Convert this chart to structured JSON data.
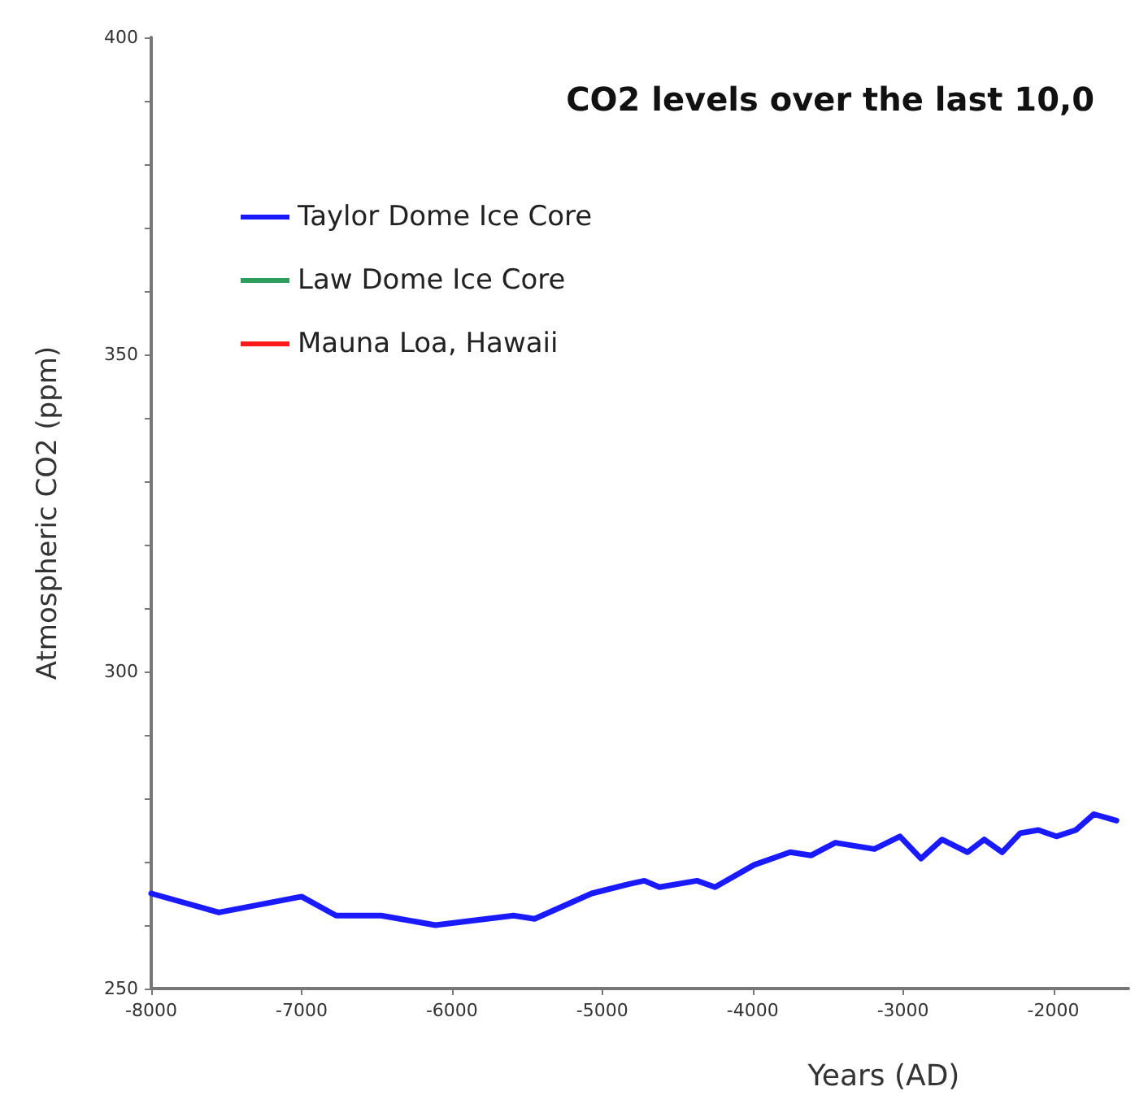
{
  "chart_data": {
    "type": "line",
    "title": "CO2 levels over the last 10,0",
    "xlabel": "Years (AD)",
    "ylabel": "Atmospheric CO2 (ppm)",
    "xlim": [
      -8000,
      -1500
    ],
    "xticks": [
      -8000,
      -7000,
      -6000,
      -5000,
      -4000,
      -3000,
      -2000
    ],
    "ylim": [
      250,
      400
    ],
    "yticks": [
      250,
      {
        "value": 260,
        "label": null
      },
      {
        "value": 270,
        "label": null
      },
      {
        "value": 280,
        "label": null
      },
      {
        "value": 290,
        "label": null
      },
      300,
      {
        "value": 310,
        "label": null
      },
      {
        "value": 320,
        "label": null
      },
      {
        "value": 330,
        "label": null
      },
      {
        "value": 340,
        "label": null
      },
      350,
      {
        "value": 360,
        "label": null
      },
      {
        "value": 370,
        "label": null
      },
      {
        "value": 380,
        "label": null
      },
      {
        "value": 390,
        "label": null
      },
      400
    ],
    "grid": false,
    "legend": "top left",
    "marker": "none",
    "line_style": "solid",
    "series": [
      {
        "name": "Taylor Dome Ice Core",
        "color": "#1a1aff",
        "x": [
          -8000,
          -7550,
          -7000,
          -6770,
          -6470,
          -6110,
          -5590,
          -5450,
          -5070,
          -4820,
          -4720,
          -4620,
          -4370,
          -4250,
          -3990,
          -3750,
          -3610,
          -3450,
          -3190,
          -3020,
          -2880,
          -2740,
          -2570,
          -2460,
          -2340,
          -2220,
          -2100,
          -1980,
          -1850,
          -1730,
          -1580
        ],
        "values": [
          265,
          262,
          264.5,
          261.5,
          261.5,
          260,
          261.5,
          261,
          265,
          266.5,
          267,
          266,
          267,
          266,
          269.5,
          271.5,
          271,
          273,
          272,
          274,
          270.5,
          273.5,
          271.5,
          273.5,
          271.5,
          274.5,
          275,
          274,
          275,
          277.5,
          276.5
        ]
      },
      {
        "name": "Law Dome Ice Core",
        "color": "#2e9e5e"
      },
      {
        "name": "Mauna Loa, Hawaii",
        "color": "#ff1a1a"
      }
    ]
  }
}
